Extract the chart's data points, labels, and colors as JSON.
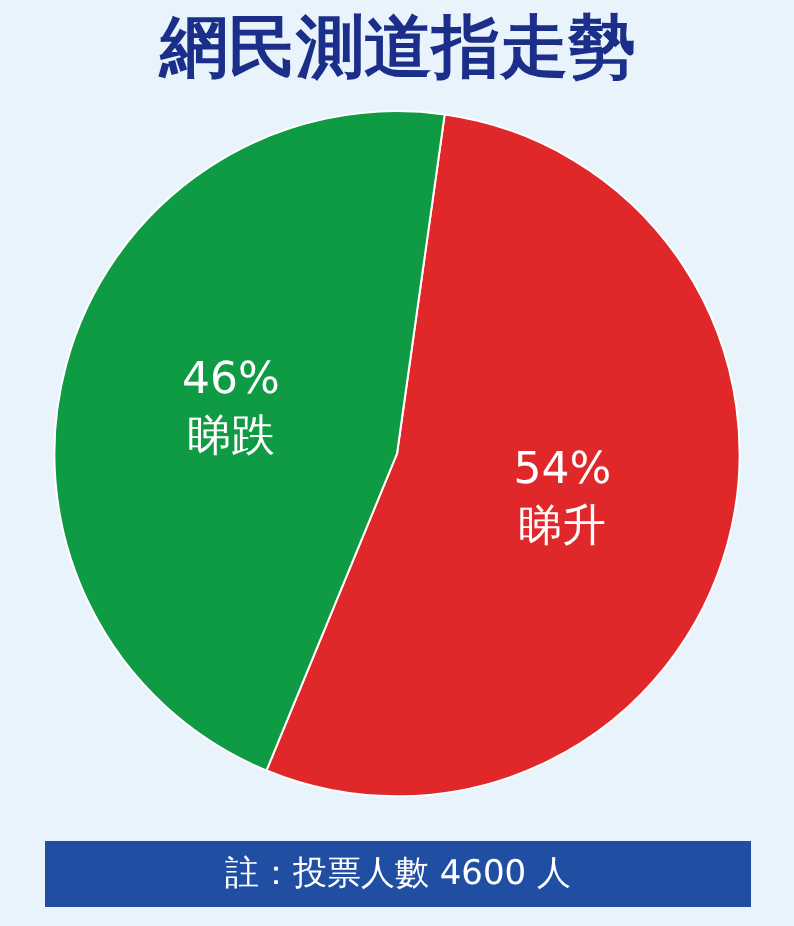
{
  "chart_data": {
    "type": "pie",
    "title": "網民測道指走勢",
    "categories": [
      "睇升",
      "睇跌"
    ],
    "values": [
      54,
      46
    ],
    "value_labels": [
      "54%",
      "46%"
    ],
    "colors": [
      "#e0282a",
      "#0f9a44"
    ],
    "legend": false,
    "annotations": [
      "註：投票人數 4600 人"
    ]
  }
}
